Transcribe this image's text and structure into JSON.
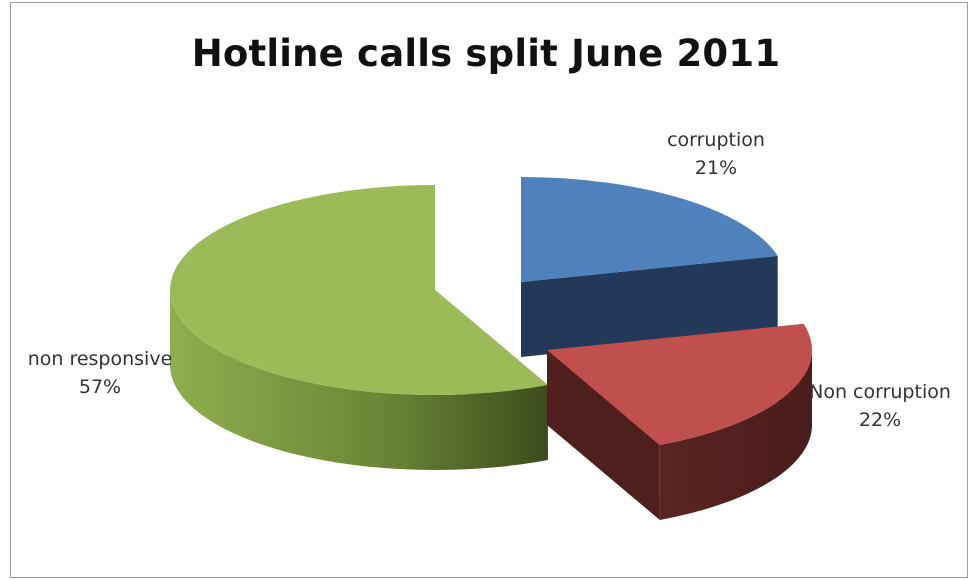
{
  "chart_data": {
    "type": "pie",
    "title": "Hotline calls split June 2011",
    "slices": [
      {
        "label": "corruption",
        "value": 21,
        "value_label": "21%",
        "color": "#4F81BD",
        "side_color": "#23395a"
      },
      {
        "label": "Non corruption",
        "value": 22,
        "value_label": "22%",
        "color": "#C0504D",
        "side_color": "#4f1f1e"
      },
      {
        "label": "non responsive",
        "value": 57,
        "value_label": "57%",
        "color": "#9BBB59",
        "side_color": "#4e6027"
      }
    ],
    "style": "3d-exploded"
  }
}
